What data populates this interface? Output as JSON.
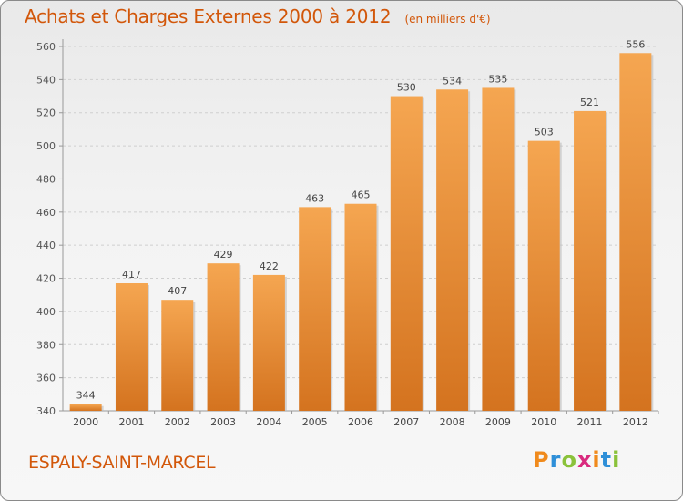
{
  "header": {
    "title": "Achats et Charges Externes 2000 à 2012",
    "unit": "(en milliers d'€)"
  },
  "footer": {
    "place": "ESPALY-SAINT-MARCEL",
    "brand": "Proxiti"
  },
  "colors": {
    "accent": "#d2570a",
    "bar_light": "#f5a651",
    "bar_dark": "#d4731f",
    "brand_letters": [
      "#f08a1c",
      "#2e8fd8",
      "#8ac23a",
      "#d92a7e",
      "#f08a1c",
      "#2e8fd8",
      "#8ac23a"
    ]
  },
  "chart_data": {
    "type": "bar",
    "categories": [
      "2000",
      "2001",
      "2002",
      "2003",
      "2004",
      "2005",
      "2006",
      "2007",
      "2008",
      "2009",
      "2010",
      "2011",
      "2012"
    ],
    "values": [
      344,
      417,
      407,
      429,
      422,
      463,
      465,
      530,
      534,
      535,
      503,
      521,
      556
    ],
    "ylim": [
      340,
      560
    ],
    "yticks": [
      340,
      360,
      380,
      400,
      420,
      440,
      460,
      480,
      500,
      520,
      540,
      560
    ],
    "grid": true,
    "data_labels": true
  }
}
